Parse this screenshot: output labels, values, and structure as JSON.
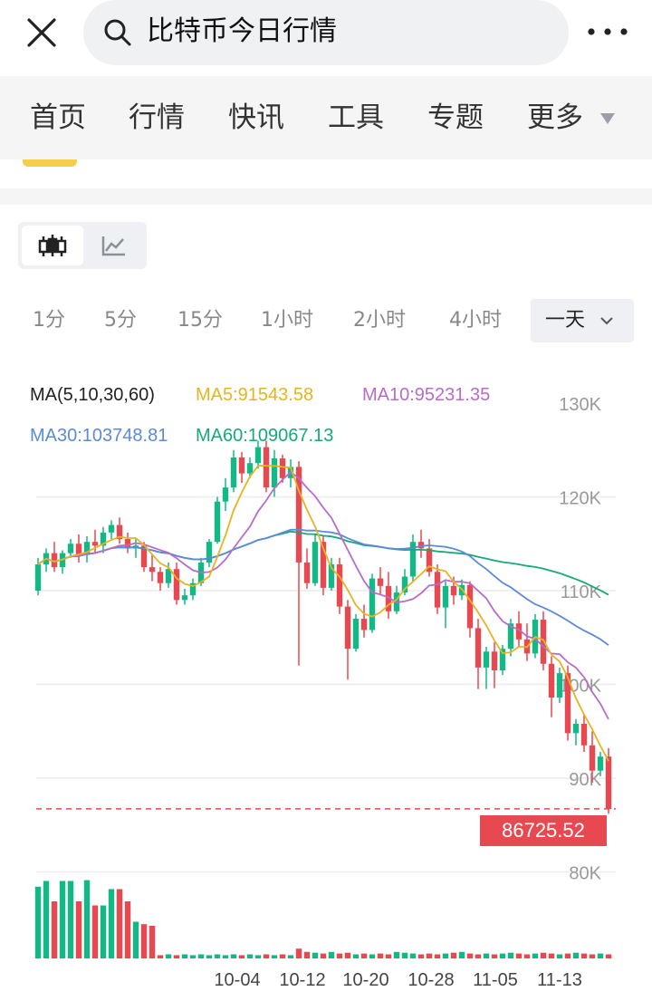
{
  "search": {
    "query": "比特币今日行情"
  },
  "nav": {
    "items": [
      "首页",
      "行情",
      "快讯",
      "工具",
      "专题",
      "更多"
    ]
  },
  "periods": [
    "1分",
    "5分",
    "15分",
    "1小时",
    "2小时",
    "4小时"
  ],
  "period_active": "一天",
  "ma": {
    "title": "MA(5,10,30,60)",
    "ma5": "MA5:91543.58",
    "ma10": "MA10:95231.35",
    "ma30": "MA30:103748.81",
    "ma60": "MA60:109067.13"
  },
  "last_price": "86725.52",
  "colors": {
    "up": "#12b886",
    "down": "#e8484f",
    "ma5": "#e6b422",
    "ma10": "#b86cc9",
    "ma30": "#5b8bd6",
    "ma60": "#16a97a"
  },
  "chart_data": {
    "type": "candlestick",
    "y_ticks": [
      "130K",
      "120K",
      "110K",
      "100K",
      "90K",
      "80K"
    ],
    "x_ticks": [
      "10-04",
      "10-12",
      "10-20",
      "10-28",
      "11-05",
      "11-13"
    ],
    "ylim": [
      80000,
      130000
    ],
    "last_price": 86725.52,
    "candles": [
      [
        110000,
        113500,
        109500,
        112800
      ],
      [
        112800,
        114500,
        112000,
        114000
      ],
      [
        114000,
        115200,
        112000,
        112500
      ],
      [
        112500,
        114300,
        111800,
        114000
      ],
      [
        114000,
        115500,
        113500,
        115000
      ],
      [
        115000,
        116000,
        113000,
        113800
      ],
      [
        113800,
        115800,
        113000,
        115200
      ],
      [
        115200,
        116500,
        114000,
        114800
      ],
      [
        114800,
        116800,
        114000,
        116200
      ],
      [
        116200,
        117500,
        115500,
        117000
      ],
      [
        117000,
        117800,
        115000,
        115500
      ],
      [
        115500,
        116200,
        114000,
        114500
      ],
      [
        114500,
        115500,
        113500,
        114800
      ],
      [
        114800,
        115200,
        112000,
        112500
      ],
      [
        112500,
        113800,
        111000,
        112000
      ],
      [
        112000,
        112500,
        110000,
        110800
      ],
      [
        110800,
        113000,
        110300,
        112300
      ],
      [
        112300,
        113000,
        108500,
        109000
      ],
      [
        109000,
        110200,
        108500,
        109500
      ],
      [
        109500,
        111300,
        109000,
        110800
      ],
      [
        110800,
        113500,
        110500,
        113000
      ],
      [
        113000,
        115500,
        112500,
        115200
      ],
      [
        115200,
        120000,
        115000,
        119500
      ],
      [
        119500,
        122000,
        118500,
        121000
      ],
      [
        121000,
        125000,
        120500,
        124200
      ],
      [
        124200,
        124800,
        121500,
        122500
      ],
      [
        122500,
        124200,
        122000,
        123600
      ],
      [
        123600,
        126000,
        123000,
        125300
      ],
      [
        125300,
        126000,
        120500,
        121000
      ],
      [
        121000,
        125000,
        120000,
        124100
      ],
      [
        124100,
        124500,
        121500,
        122000
      ],
      [
        122000,
        124000,
        121000,
        123200
      ],
      [
        123200,
        123800,
        102000,
        113000
      ],
      [
        113000,
        114500,
        110200,
        110800
      ],
      [
        110800,
        116000,
        110500,
        115200
      ],
      [
        115200,
        115800,
        109500,
        110300
      ],
      [
        110300,
        113500,
        110000,
        112800
      ],
      [
        112800,
        113500,
        107500,
        108300
      ],
      [
        108300,
        109000,
        100500,
        103800
      ],
      [
        103800,
        107500,
        103500,
        107000
      ],
      [
        107000,
        108500,
        105000,
        105800
      ],
      [
        105800,
        111800,
        105500,
        111300
      ],
      [
        111300,
        112500,
        109500,
        110500
      ],
      [
        110500,
        112000,
        107000,
        107800
      ],
      [
        107800,
        110500,
        107500,
        109800
      ],
      [
        109800,
        112300,
        109500,
        111500
      ],
      [
        111500,
        116000,
        111000,
        115200
      ],
      [
        115200,
        116500,
        113500,
        114500
      ],
      [
        114500,
        115500,
        111500,
        112000
      ],
      [
        112000,
        112800,
        107500,
        108200
      ],
      [
        108200,
        111000,
        106000,
        110500
      ],
      [
        110500,
        111500,
        108500,
        109500
      ],
      [
        109500,
        111200,
        109000,
        110600
      ],
      [
        110600,
        111000,
        105000,
        106000
      ],
      [
        106000,
        107000,
        99500,
        101800
      ],
      [
        101800,
        104000,
        99500,
        103500
      ],
      [
        103500,
        104500,
        99600,
        101500
      ],
      [
        101500,
        104200,
        101000,
        103800
      ],
      [
        103800,
        107000,
        103000,
        106500
      ],
      [
        106500,
        107800,
        104000,
        104800
      ],
      [
        104800,
        106500,
        102500,
        103300
      ],
      [
        103300,
        107500,
        102800,
        106900
      ],
      [
        106900,
        107800,
        101500,
        102200
      ],
      [
        102200,
        103000,
        96500,
        98600
      ],
      [
        98600,
        101800,
        98000,
        101200
      ],
      [
        101200,
        102000,
        94000,
        94800
      ],
      [
        94800,
        96300,
        93500,
        95800
      ],
      [
        95800,
        96800,
        92800,
        93500
      ],
      [
        93500,
        95000,
        89500,
        90800
      ],
      [
        90800,
        92800,
        90200,
        92300
      ],
      [
        92300,
        93200,
        86200,
        86700
      ]
    ],
    "volumes": [
      88,
      95,
      70,
      95,
      95,
      70,
      96,
      65,
      65,
      85,
      85,
      70,
      45,
      42,
      40,
      4,
      5,
      4,
      5,
      4,
      5,
      4,
      5,
      4,
      5,
      4,
      5,
      4,
      5,
      4,
      5,
      4,
      12,
      8,
      7,
      6,
      8,
      6,
      7,
      5,
      6,
      5,
      6,
      5,
      8,
      7,
      6,
      5,
      6,
      5,
      6,
      7,
      8,
      6,
      5,
      6,
      5,
      6,
      7,
      6,
      5,
      6,
      7,
      6,
      5,
      6,
      7,
      6,
      5,
      6,
      5
    ]
  }
}
